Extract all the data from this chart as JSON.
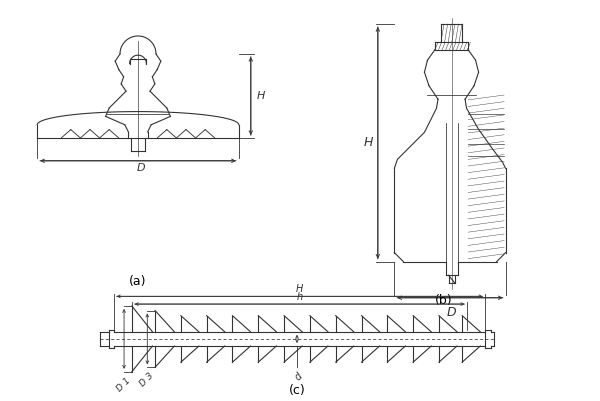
{
  "background": "#ffffff",
  "line_color": "#333333",
  "label_a": "(a)",
  "label_b": "(b)",
  "label_c": "(c)",
  "dim_H": "H",
  "dim_D": "D",
  "dim_h": "h",
  "dim_D1": "D 1",
  "dim_D3": "D 3",
  "dim_d": "d"
}
